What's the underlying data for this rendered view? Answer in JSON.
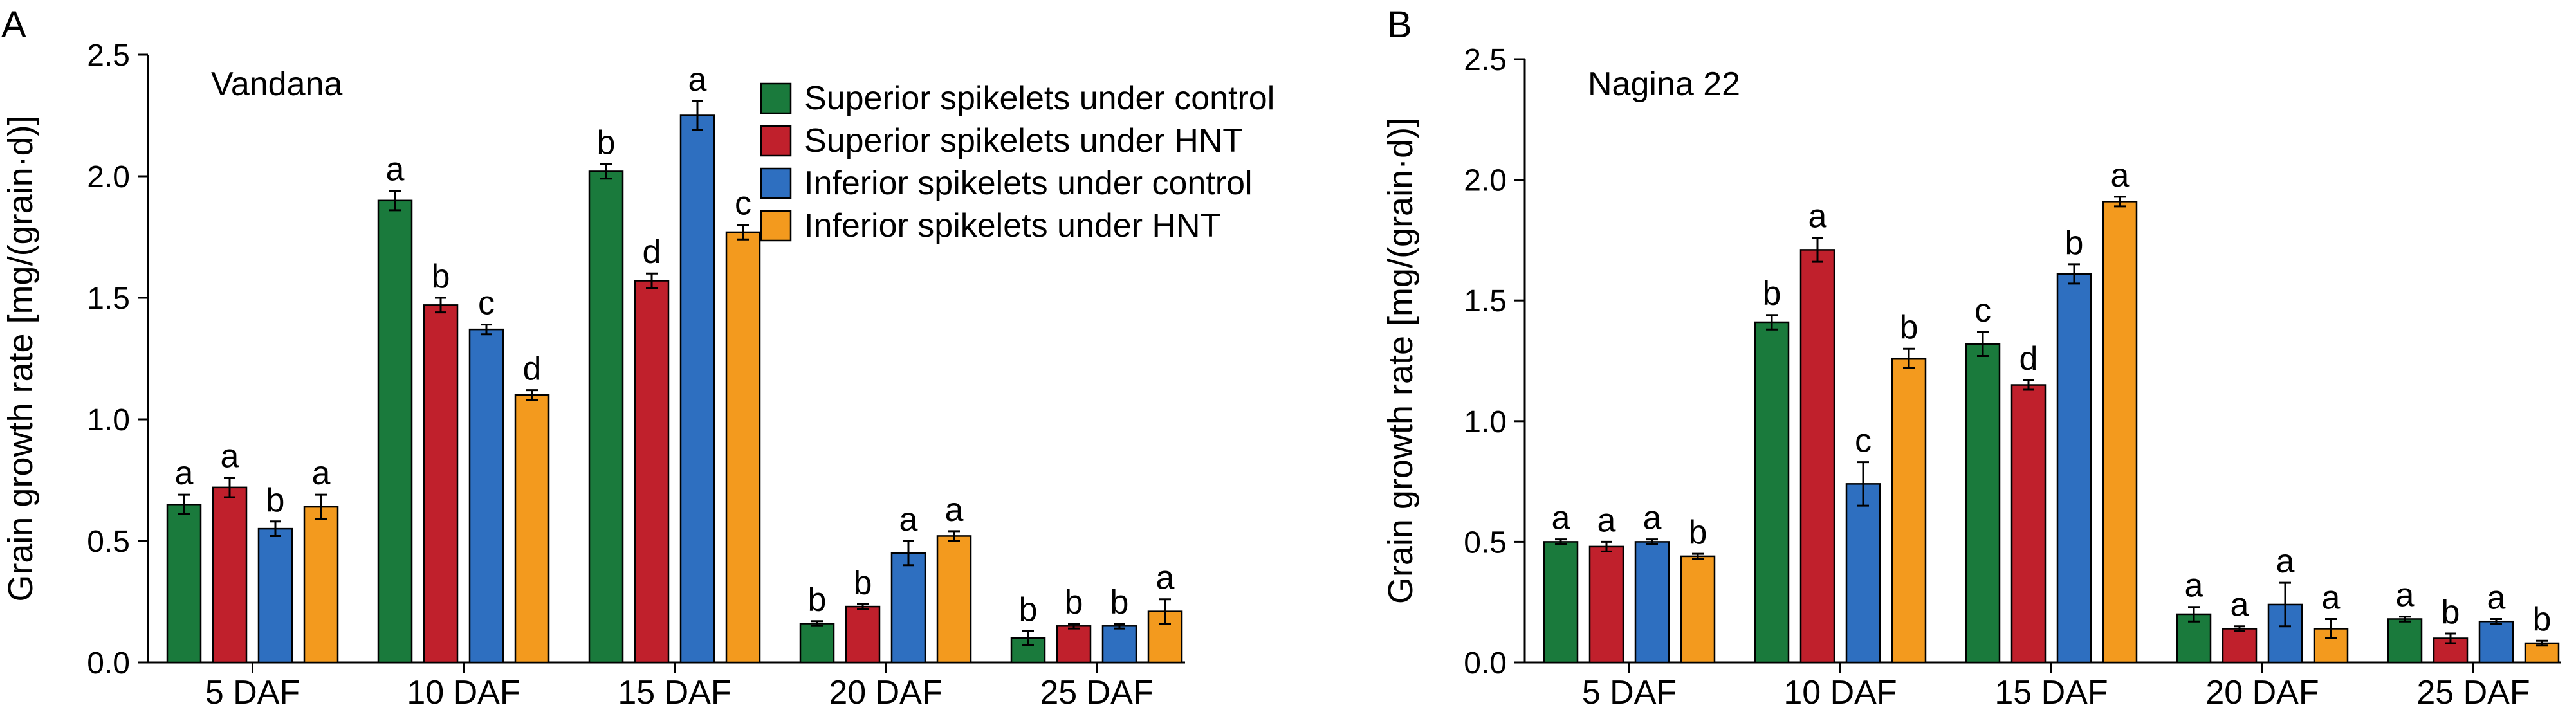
{
  "panels": [
    {
      "letter": "A",
      "title": "Vandana"
    },
    {
      "letter": "B",
      "title": "Nagina 22"
    }
  ],
  "legend": [
    "Superior spikelets under control",
    "Superior spikelets under HNT",
    "Inferior spikelets under control",
    "Inferior spikelets under HNT"
  ],
  "colors": {
    "Superior spikelets under control": "#1a7a3c",
    "Superior spikelets under HNT": "#c0202c",
    "Inferior spikelets under control": "#2e6fc0",
    "Inferior spikelets under HNT": "#f39a1e"
  },
  "chart_data": [
    {
      "type": "bar",
      "title": "Vandana",
      "ylabel": "Grain growth rate [mg/(grain·d)]",
      "xlabel": "",
      "ylim": [
        0,
        2.5
      ],
      "yticks": [
        "0.0",
        "0.5",
        "1.0",
        "1.5",
        "2.0",
        "2.5"
      ],
      "categories": [
        "5 DAF",
        "10 DAF",
        "15 DAF",
        "20 DAF",
        "25 DAF"
      ],
      "series": [
        {
          "name": "Superior spikelets under control",
          "values": [
            0.65,
            1.9,
            2.02,
            0.16,
            0.1
          ],
          "errors": [
            0.04,
            0.04,
            0.03,
            0.01,
            0.03
          ],
          "letters": [
            "a",
            "a",
            "b",
            "b",
            "b"
          ]
        },
        {
          "name": "Superior spikelets under HNT",
          "values": [
            0.72,
            1.47,
            1.57,
            0.23,
            0.15
          ],
          "errors": [
            0.04,
            0.03,
            0.03,
            0.01,
            0.01
          ],
          "letters": [
            "a",
            "b",
            "d",
            "b",
            "b"
          ]
        },
        {
          "name": "Inferior spikelets under control",
          "values": [
            0.55,
            1.37,
            2.25,
            0.45,
            0.15
          ],
          "errors": [
            0.03,
            0.02,
            0.06,
            0.05,
            0.01
          ],
          "letters": [
            "b",
            "c",
            "a",
            "a",
            "b"
          ]
        },
        {
          "name": "Inferior spikelets under HNT",
          "values": [
            0.64,
            1.1,
            1.77,
            0.52,
            0.21
          ],
          "errors": [
            0.05,
            0.02,
            0.03,
            0.02,
            0.05
          ],
          "letters": [
            "a",
            "d",
            "c",
            "a",
            "a"
          ]
        }
      ],
      "grid": false,
      "legend_position": "top-right"
    },
    {
      "type": "bar",
      "title": "Nagina 22",
      "ylabel": "Grain growth rate [mg/(grain·d)]",
      "xlabel": "",
      "ylim": [
        0,
        2.5
      ],
      "yticks": [
        "0.0",
        "0.5",
        "1.0",
        "1.5",
        "2.0",
        "2.5"
      ],
      "categories": [
        "5 DAF",
        "10 DAF",
        "15 DAF",
        "20 DAF",
        "25 DAF"
      ],
      "series": [
        {
          "name": "Superior spikelets under control",
          "values": [
            0.5,
            1.41,
            1.32,
            0.2,
            0.18
          ],
          "errors": [
            0.01,
            0.03,
            0.05,
            0.03,
            0.01
          ],
          "letters": [
            "a",
            "b",
            "c",
            "a",
            "a"
          ]
        },
        {
          "name": "Superior spikelets under HNT",
          "values": [
            0.48,
            1.71,
            1.15,
            0.14,
            0.1
          ],
          "errors": [
            0.02,
            0.05,
            0.02,
            0.01,
            0.02
          ],
          "letters": [
            "a",
            "a",
            "d",
            "a",
            "b"
          ]
        },
        {
          "name": "Inferior spikelets under control",
          "values": [
            0.5,
            0.74,
            1.61,
            0.24,
            0.17
          ],
          "errors": [
            0.01,
            0.09,
            0.04,
            0.09,
            0.01
          ],
          "letters": [
            "a",
            "c",
            "b",
            "a",
            "a"
          ]
        },
        {
          "name": "Inferior spikelets under HNT",
          "values": [
            0.44,
            1.26,
            1.91,
            0.14,
            0.08
          ],
          "errors": [
            0.01,
            0.04,
            0.02,
            0.04,
            0.01
          ],
          "letters": [
            "b",
            "b",
            "a",
            "a",
            "b"
          ]
        }
      ],
      "grid": false,
      "legend_position": "none"
    }
  ]
}
